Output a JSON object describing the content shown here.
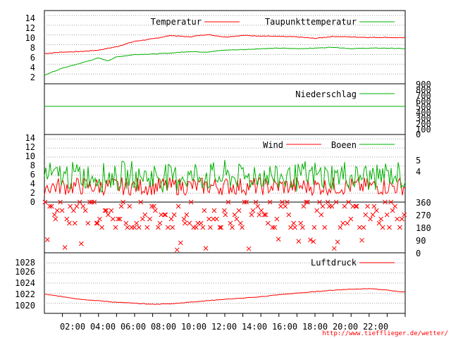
{
  "source_url": "http://www.tiefflieger.de/wetter/",
  "colors": {
    "red": "#ff0000",
    "green": "#00b000",
    "grid": "#a0a0a0",
    "axis": "#000000"
  },
  "chart_data": [
    {
      "type": "line",
      "panel": "temperature",
      "series": [
        {
          "name": "Temperatur",
          "color": "#ff0000",
          "points": [
            [
              0,
              6.2
            ],
            [
              1,
              6.5
            ],
            [
              2,
              6.6
            ],
            [
              3,
              6.9
            ],
            [
              4,
              7.6
            ],
            [
              5,
              8.7
            ],
            [
              6,
              9.2
            ],
            [
              7,
              9.9
            ],
            [
              8,
              9.6
            ],
            [
              9,
              10.1
            ],
            [
              10,
              9.6
            ],
            [
              11,
              9.9
            ],
            [
              12,
              9.8
            ],
            [
              13,
              9.7
            ],
            [
              14,
              9.6
            ],
            [
              15,
              9.3
            ],
            [
              16,
              9.7
            ],
            [
              17,
              9.6
            ],
            [
              18,
              9.5
            ],
            [
              19,
              9.5
            ],
            [
              20,
              9.4
            ]
          ]
        },
        {
          "name": "Taupunkttemperatur",
          "color": "#00b000",
          "points": [
            [
              0,
              1.8
            ],
            [
              1,
              3.2
            ],
            [
              2,
              4.2
            ],
            [
              3,
              5.3
            ],
            [
              3.5,
              4.7
            ],
            [
              4,
              5.5
            ],
            [
              5,
              6.0
            ],
            [
              6,
              6.1
            ],
            [
              7,
              6.3
            ],
            [
              8,
              6.6
            ],
            [
              9,
              6.5
            ],
            [
              10,
              6.9
            ],
            [
              11,
              7.0
            ],
            [
              12,
              7.2
            ],
            [
              13,
              7.3
            ],
            [
              14,
              7.2
            ],
            [
              15,
              7.3
            ],
            [
              16,
              7.5
            ],
            [
              17,
              7.2
            ],
            [
              18,
              7.3
            ],
            [
              19,
              7.3
            ],
            [
              20,
              7.2
            ]
          ]
        }
      ],
      "ylim": [
        0,
        15
      ],
      "yticks": [
        "2",
        "4",
        "6",
        "8",
        "10",
        "12",
        "14"
      ],
      "legend": "top-right"
    },
    {
      "type": "line",
      "panel": "precipitation",
      "series": [
        {
          "name": "Niederschlag",
          "color": "#00b000",
          "points": [
            [
              0,
              500
            ],
            [
              20,
              500
            ]
          ]
        }
      ],
      "ylim": [
        0,
        900
      ],
      "yticks_right": [
        "0",
        "100",
        "200",
        "300",
        "400",
        "500",
        "600",
        "700",
        "800",
        "900"
      ],
      "legend": "top-right"
    },
    {
      "type": "line",
      "panel": "wind",
      "series": [
        {
          "name": "Wind",
          "color": "#ff0000",
          "mean": 3.5,
          "amplitude": 2
        },
        {
          "name": "Boeen",
          "color": "#00b000",
          "mean": 5,
          "amplitude": 3
        }
      ],
      "ylim": [
        0,
        15
      ],
      "yticks": [
        "0",
        "2",
        "4",
        "6",
        "8",
        "10",
        "12",
        "14"
      ],
      "yticks_right": [
        "4",
        "5"
      ],
      "legend": "top-right"
    },
    {
      "type": "scatter",
      "panel": "wind-direction",
      "marker": "x",
      "color": "#ff0000",
      "ylim": [
        0,
        360
      ],
      "yticks_right": [
        "0",
        "90",
        "180",
        "270",
        "360"
      ],
      "dominant_values": [
        180,
        210,
        240,
        270,
        300,
        330,
        360
      ]
    },
    {
      "type": "line",
      "panel": "pressure",
      "series": [
        {
          "name": "Luftdruck",
          "color": "#ff0000",
          "points": [
            [
              0,
              1021.8
            ],
            [
              1,
              1021.3
            ],
            [
              2,
              1020.8
            ],
            [
              3,
              1020.5
            ],
            [
              4,
              1020.2
            ],
            [
              5,
              1020.0
            ],
            [
              6,
              1019.8
            ],
            [
              7,
              1019.9
            ],
            [
              8,
              1020.2
            ],
            [
              9,
              1020.5
            ],
            [
              10,
              1020.8
            ],
            [
              11,
              1021.0
            ],
            [
              12,
              1021.3
            ],
            [
              13,
              1021.7
            ],
            [
              14,
              1022.0
            ],
            [
              15,
              1022.3
            ],
            [
              16,
              1022.6
            ],
            [
              17,
              1022.8
            ],
            [
              18,
              1022.9
            ],
            [
              19,
              1022.6
            ],
            [
              20,
              1022.2
            ]
          ]
        }
      ],
      "ylim": [
        1018,
        1030
      ],
      "yticks": [
        "1020",
        "1022",
        "1024",
        "1026",
        "1028"
      ],
      "legend": "top-right"
    }
  ],
  "x_axis": {
    "ticks": [
      "02:00",
      "04:00",
      "06:00",
      "08:00",
      "10:00",
      "12:00",
      "14:00",
      "16:00",
      "18:00",
      "20:00",
      "22:00"
    ],
    "range_hours": [
      0,
      20
    ]
  }
}
